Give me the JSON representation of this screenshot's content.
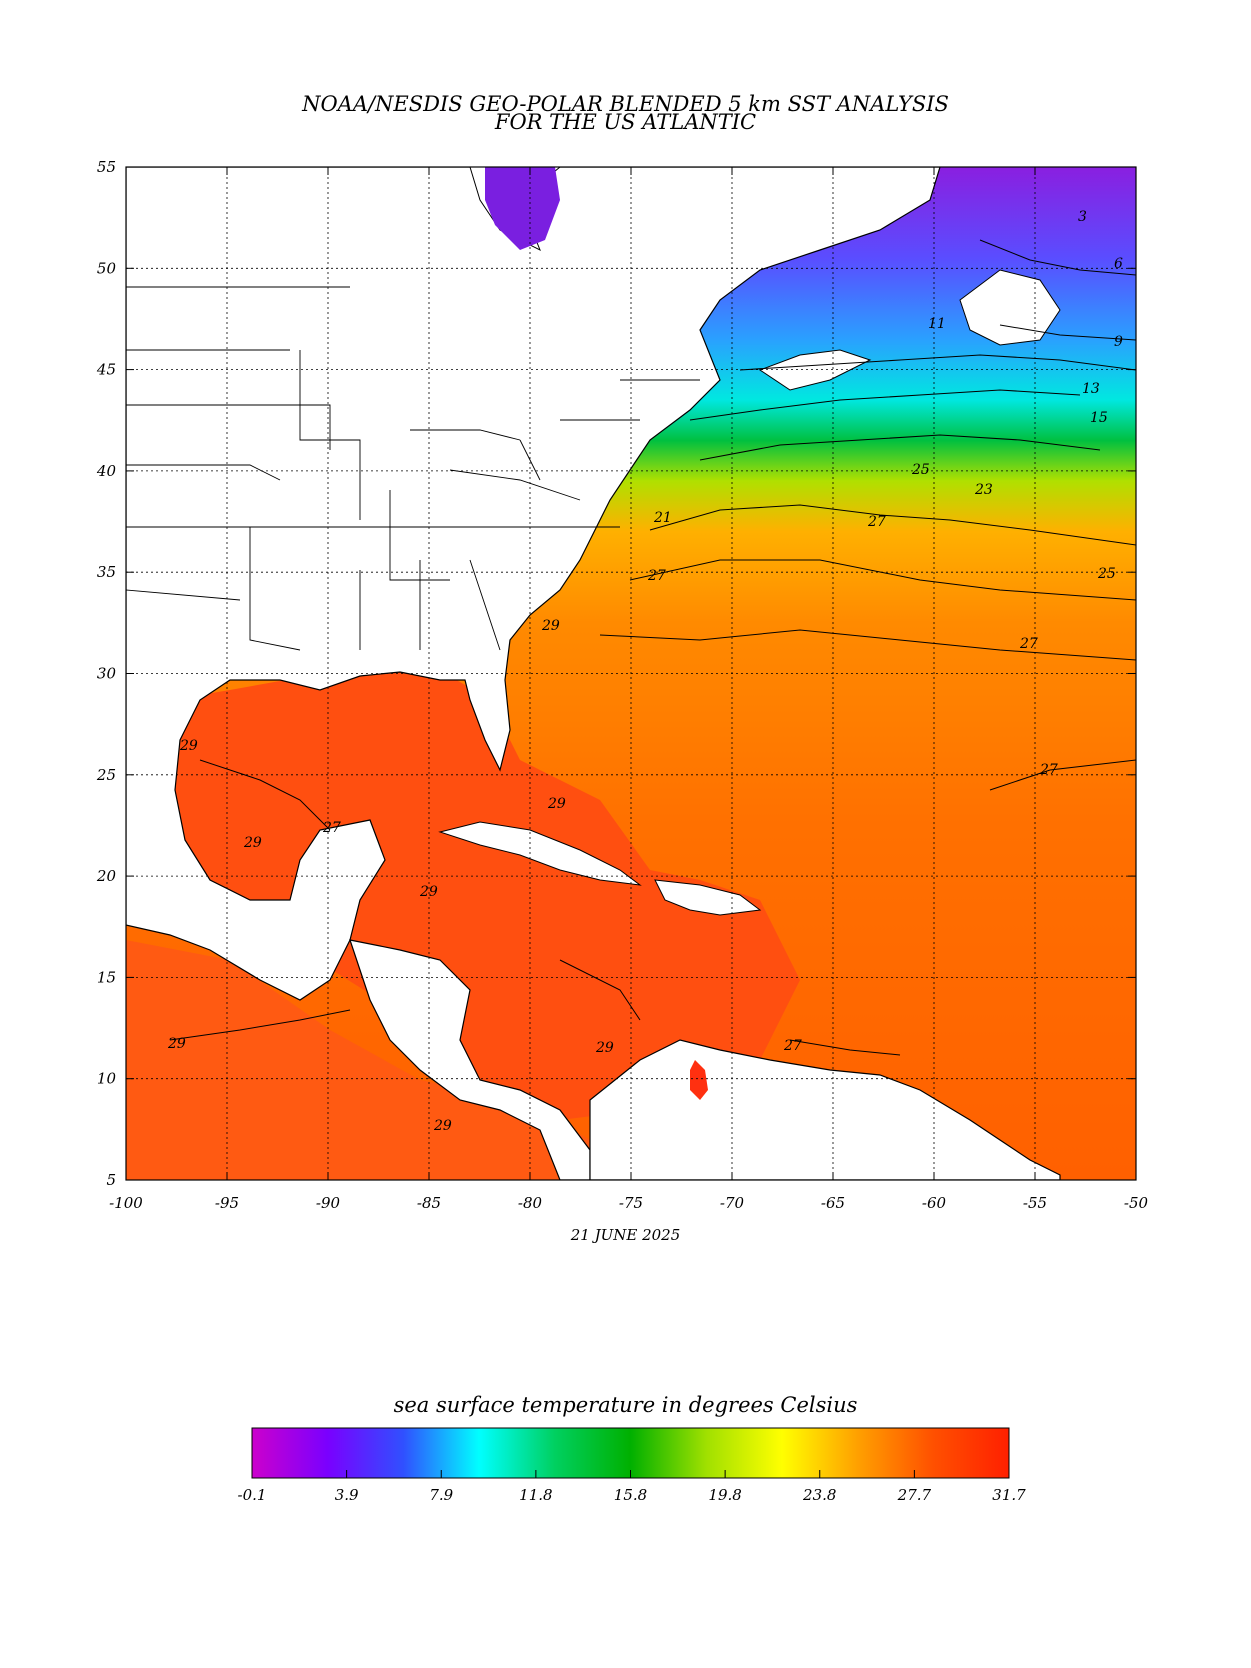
{
  "title": {
    "line1": "NOAA/NESDIS GEO-POLAR BLENDED 5 km SST ANALYSIS",
    "line2": "FOR THE US ATLANTIC"
  },
  "date": "21 JUNE 2025",
  "axes": {
    "lon_ticks": [
      "-100",
      "-95",
      "-90",
      "-85",
      "-80",
      "-75",
      "-70",
      "-65",
      "-60",
      "-55",
      "-50"
    ],
    "lat_ticks": [
      "55",
      "50",
      "45",
      "40",
      "35",
      "30",
      "25",
      "20",
      "15",
      "10",
      "5"
    ],
    "lon_range": [
      -100,
      -50
    ],
    "lat_range": [
      5,
      55
    ]
  },
  "contour_labels": [
    "3",
    "6",
    "9",
    "11",
    "13",
    "15",
    "23",
    "25",
    "27",
    "29",
    "21"
  ],
  "colorbar": {
    "title": "sea surface temperature in degrees Celsius",
    "tick_labels": [
      "-0.1",
      "3.9",
      "7.9",
      "11.8",
      "15.8",
      "19.8",
      "23.8",
      "27.7",
      "31.7"
    ],
    "range": [
      -0.1,
      31.7
    ],
    "colors": [
      "#cc00cc",
      "#7a00ff",
      "#3050ff",
      "#00ffff",
      "#00d060",
      "#00b000",
      "#a0e000",
      "#ffff00",
      "#ffa000",
      "#ff5000",
      "#ff2000"
    ]
  },
  "colors": {
    "land": "#ffffff",
    "warm": "#ff6a00",
    "hot": "#ff4a10",
    "cold": "#7020e0"
  }
}
